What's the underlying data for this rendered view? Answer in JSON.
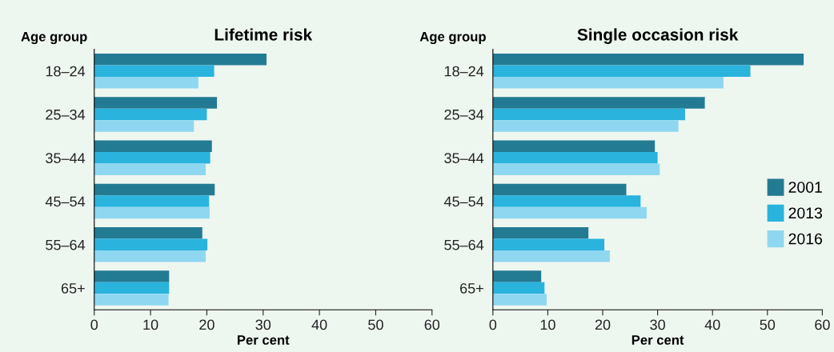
{
  "chart_data": [
    {
      "type": "bar",
      "orientation": "horizontal",
      "title": "Lifetime risk",
      "ylabel": "Age group",
      "xlabel": "Per cent",
      "categories": [
        "18–24",
        "25–34",
        "35–44",
        "45–54",
        "55–64",
        "65+"
      ],
      "series": [
        {
          "color": "#237b93",
          "values": [
            30.6,
            21.8,
            20.9,
            21.4,
            19.2,
            13.3
          ]
        },
        {
          "color": "#29b3dd",
          "values": [
            21.3,
            20.0,
            20.6,
            20.4,
            20.1,
            13.3
          ]
        },
        {
          "color": "#8fd7f0",
          "values": [
            18.5,
            17.7,
            19.8,
            20.5,
            19.8,
            13.2
          ]
        }
      ],
      "xlim": [
        0,
        60
      ],
      "xticks": [
        0,
        10,
        20,
        30,
        40,
        50,
        60
      ],
      "grid": false,
      "legend": false
    },
    {
      "type": "bar",
      "orientation": "horizontal",
      "title": "Single occasion risk",
      "ylabel": "Age group",
      "xlabel": "Per cent",
      "categories": [
        "18–24",
        "25–34",
        "35–44",
        "45–54",
        "55–64",
        "65+"
      ],
      "series": [
        {
          "name": "2001",
          "color": "#237b93",
          "values": [
            56.6,
            38.6,
            29.5,
            24.3,
            17.4,
            8.8
          ]
        },
        {
          "name": "2013",
          "color": "#29b3dd",
          "values": [
            46.9,
            35.0,
            30.0,
            26.9,
            20.3,
            9.4
          ]
        },
        {
          "name": "2016",
          "color": "#8fd7f0",
          "values": [
            42.0,
            33.8,
            30.4,
            28.0,
            21.3,
            9.8
          ]
        }
      ],
      "xlim": [
        0,
        60
      ],
      "xticks": [
        0,
        10,
        20,
        30,
        40,
        50,
        60
      ],
      "grid": false,
      "legend": "right"
    }
  ]
}
